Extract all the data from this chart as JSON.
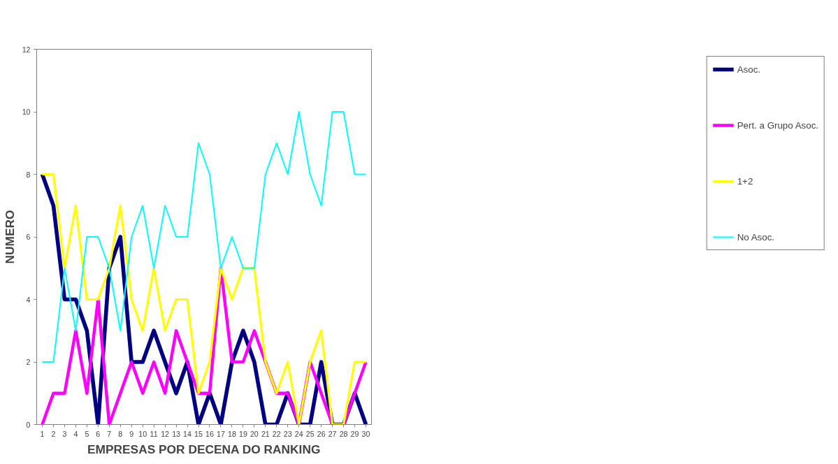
{
  "chart_data": {
    "type": "line",
    "xlabel": "EMPRESAS POR DECENA DO RANKING",
    "ylabel": "NUMERO",
    "x": [
      1,
      2,
      3,
      4,
      5,
      6,
      7,
      8,
      9,
      10,
      11,
      12,
      13,
      14,
      15,
      16,
      17,
      18,
      19,
      20,
      21,
      22,
      23,
      24,
      25,
      26,
      27,
      28,
      29,
      30
    ],
    "xlim": [
      0.5,
      30.5
    ],
    "xticks": [
      1,
      2,
      3,
      4,
      5,
      6,
      7,
      8,
      9,
      10,
      11,
      12,
      13,
      14,
      15,
      16,
      17,
      18,
      19,
      20,
      21,
      22,
      23,
      24,
      25,
      26,
      27,
      28,
      29,
      30
    ],
    "ylim": [
      0,
      12
    ],
    "yticks": [
      0,
      2,
      4,
      6,
      8,
      10,
      12
    ],
    "grid": false,
    "legend": "right",
    "marker": "none",
    "line_style": "solid",
    "series": [
      {
        "name": "Asoc.",
        "color": "#000080",
        "values": [
          8,
          7,
          4,
          4,
          3,
          0,
          5,
          6,
          2,
          2,
          3,
          2,
          1,
          2,
          0,
          1,
          0,
          2,
          3,
          2,
          0,
          0,
          1,
          0,
          0,
          2,
          0,
          0,
          1,
          0
        ]
      },
      {
        "name": "Pert. a Grupo Asoc.",
        "color": "#ff00ff",
        "values": [
          0,
          1,
          1,
          3,
          1,
          4,
          0,
          1,
          2,
          1,
          2,
          1,
          3,
          2,
          1,
          1,
          5,
          2,
          2,
          3,
          2,
          1,
          1,
          0,
          2,
          1,
          0,
          0,
          1,
          2
        ]
      },
      {
        "name": "1+2",
        "color": "#ffff00",
        "values": [
          8,
          8,
          5,
          7,
          4,
          4,
          5,
          7,
          4,
          3,
          5,
          3,
          4,
          4,
          1,
          2,
          5,
          4,
          5,
          5,
          2,
          1,
          2,
          0,
          2,
          3,
          0,
          0,
          2,
          2
        ]
      },
      {
        "name": "No Asoc.",
        "color": "#00ffff",
        "values": [
          2,
          2,
          5,
          3,
          6,
          6,
          5,
          3,
          6,
          7,
          5,
          7,
          6,
          6,
          9,
          8,
          5,
          6,
          5,
          5,
          8,
          9,
          8,
          10,
          8,
          7,
          10,
          10,
          8,
          8
        ]
      }
    ]
  }
}
